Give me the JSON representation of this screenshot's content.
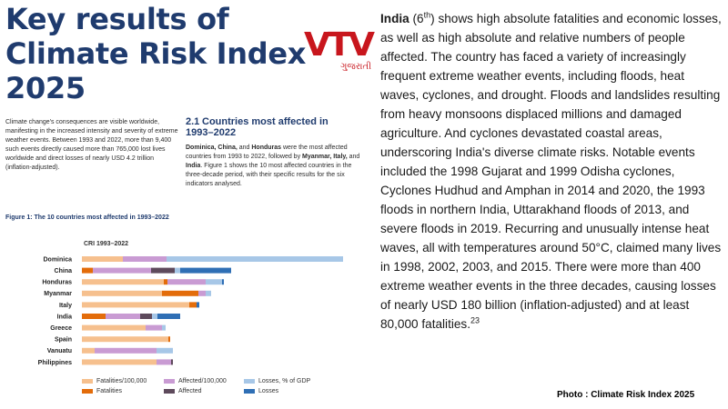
{
  "title": "Key results of Climate Risk Index 2025",
  "logo": {
    "text": "VTV",
    "sub": "ગુજરાતી"
  },
  "intro": "Climate change's consequences are visible worldwide, manifesting in the increased intensity and severity of extreme weather events. Between 1993 and 2022, more than 9,400 such events directly caused more than 765,000 lost lives worldwide and direct losses of nearly USD 4.2 trillion (inflation-adjusted).",
  "section": {
    "number": "2.1",
    "title": "Countries most affected in 1993–2022",
    "countries_bold": "Dominica, China,",
    "and_word": " and ",
    "honduras": "Honduras",
    "body_1": " were the most affected countries from 1993 to 2022, followed by ",
    "myanmar_italy": "Myanmar, Italy,",
    "and_word_2": " and ",
    "india": "India",
    "body_2": ". Figure 1 shows the 10 most affected countries in the three-decade period, with their specific results for the six indicators analysed."
  },
  "figure_title": "Figure 1: The 10 countries most affected in 1993–2022",
  "chart_data": {
    "type": "bar",
    "orientation": "horizontal-stacked",
    "subtitle": "CRI 1993–2022",
    "categories": [
      "Dominica",
      "China",
      "Honduras",
      "Myanmar",
      "Italy",
      "India",
      "Greece",
      "Spain",
      "Vanuatu",
      "Philippines"
    ],
    "series": [
      {
        "name": "Fatalities/100,000",
        "color": "#f6c08e",
        "values": [
          45,
          0,
          90,
          88,
          118,
          0,
          70,
          95,
          14,
          82
        ]
      },
      {
        "name": "Fatalities",
        "color": "#e36c0a",
        "values": [
          0,
          12,
          4,
          40,
          8,
          26,
          0,
          2,
          0,
          0
        ]
      },
      {
        "name": "Affected/100,000",
        "color": "#c99bd3",
        "values": [
          48,
          64,
          42,
          8,
          0,
          38,
          18,
          0,
          68,
          16
        ]
      },
      {
        "name": "Affected",
        "color": "#5e4a5c",
        "values": [
          0,
          26,
          0,
          0,
          0,
          13,
          0,
          0,
          0,
          2
        ]
      },
      {
        "name": "Losses, % of GDP",
        "color": "#a7c7e7",
        "values": [
          194,
          6,
          18,
          6,
          0,
          6,
          4,
          0,
          18,
          0
        ]
      },
      {
        "name": "Losses",
        "color": "#2f6fb5",
        "values": [
          0,
          56,
          2,
          0,
          3,
          25,
          0,
          0,
          0,
          0
        ]
      }
    ],
    "xlim": [
      0,
      300
    ],
    "grid": false,
    "legend": "bottom"
  },
  "right_text": {
    "country": "India",
    "rank": "6",
    "rank_suffix": "th",
    "body": "shows high absolute fatalities and economic losses, as well as high absolute and relative numbers of people affected. The country has faced a variety of increasingly frequent extreme weather events, including floods, heat waves, cyclones, and drought. Floods and landslides resulting from heavy monsoons displaced millions and damaged agriculture. And cyclones devastated coastal areas, underscoring India's diverse climate risks. Notable events included the 1998 Gujarat and 1999 Odisha cyclones, Cyclones Hudhud and Amphan in 2014 and 2020, the 1993 floods in northern India, Uttarakhand floods of 2013, and severe floods in 2019. Recurring and unusually intense heat waves, all with temperatures around 50°C, claimed many lives in 1998, 2002, 2003, and 2015. There were more than 400 extreme weather events in the three decades, causing losses of nearly USD 180 billion (inflation-adjusted) and at least 80,000 fatalities.",
    "footnote": "23"
  },
  "credit": "Photo : Climate Risk Index 2025"
}
